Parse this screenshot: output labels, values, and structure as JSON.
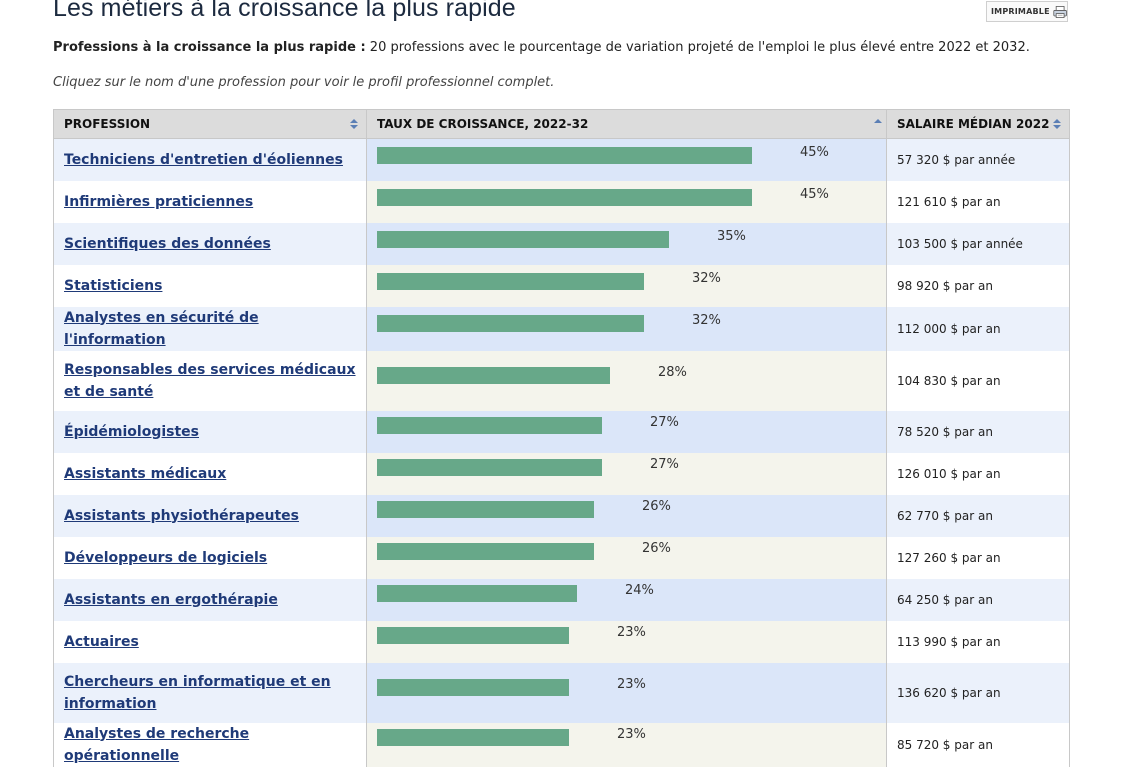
{
  "page": {
    "title": "Les métiers à la croissance la plus rapide",
    "print_label": "IMPRIMABLE",
    "intro_bold": "Professions à la croissance la plus rapide :",
    "intro_text": " 20 professions avec le pourcentage de variation projeté de l'emploi le plus élevé entre 2022 et 2032.",
    "instructions": "Cliquez sur le nom d'une profession pour voir le profil professionnel complet."
  },
  "table": {
    "headers": {
      "profession": "PROFESSION",
      "growth": "TAUX DE CROISSANCE, 2022-32",
      "salary": "SALAIRE MÉDIAN 2022"
    },
    "max_growth": 45,
    "rows": [
      {
        "name": "Techniciens d'entretien d'éoliennes",
        "growth": 45,
        "growth_label": "45%",
        "salary": "57 320 $ par année"
      },
      {
        "name": "Infirmières praticiennes",
        "growth": 45,
        "growth_label": "45%",
        "salary": "121 610 $ par an"
      },
      {
        "name": "Scientifiques des données",
        "growth": 35,
        "growth_label": "35%",
        "salary": "103 500 $ par année"
      },
      {
        "name": "Statisticiens",
        "growth": 32,
        "growth_label": "32%",
        "salary": "98 920 $ par an"
      },
      {
        "name": "Analystes en sécurité de l'information",
        "growth": 32,
        "growth_label": "32%",
        "salary": "112 000 $ par an"
      },
      {
        "name": "Responsables des services médicaux et de santé",
        "growth": 28,
        "growth_label": "28%",
        "salary": "104 830 $ par an"
      },
      {
        "name": "Épidémiologistes",
        "growth": 27,
        "growth_label": "27%",
        "salary": "78 520 $ par an"
      },
      {
        "name": "Assistants médicaux",
        "growth": 27,
        "growth_label": "27%",
        "salary": "126 010 $ par an"
      },
      {
        "name": "Assistants physiothérapeutes",
        "growth": 26,
        "growth_label": "26%",
        "salary": "62 770 $ par an"
      },
      {
        "name": "Développeurs de logiciels",
        "growth": 26,
        "growth_label": "26%",
        "salary": "127 260 $ par an"
      },
      {
        "name": "Assistants en ergothérapie",
        "growth": 24,
        "growth_label": "24%",
        "salary": "64 250 $ par an"
      },
      {
        "name": "Actuaires",
        "growth": 23,
        "growth_label": "23%",
        "salary": "113 990 $ par an"
      },
      {
        "name": "Chercheurs en informatique et en information",
        "growth": 23,
        "growth_label": "23%",
        "salary": "136 620 $ par an"
      },
      {
        "name": "Analystes de recherche opérationnelle",
        "growth": 23,
        "growth_label": "23%",
        "salary": "85 720 $ par an"
      }
    ]
  }
}
